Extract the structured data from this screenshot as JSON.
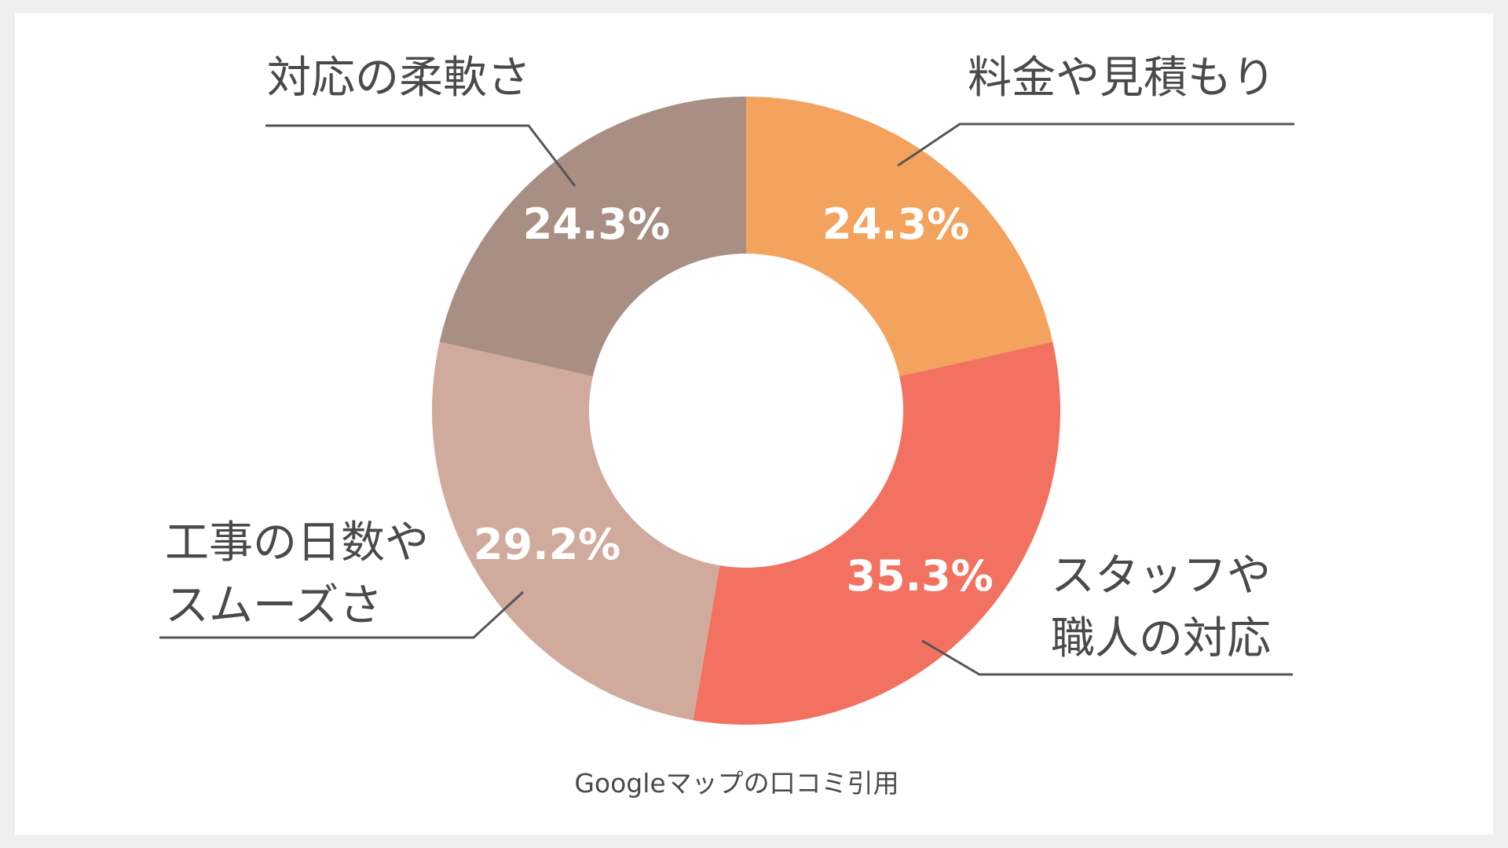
{
  "chart_data": {
    "type": "pie",
    "donut": true,
    "start": "12 o'clock, clockwise",
    "categories": [
      "料金や見積もり",
      "スタッフや職人の対応",
      "工事の日数やスムーズさ",
      "対応の柔軟さ"
    ],
    "label_lines": [
      [
        "料金や見積もり"
      ],
      [
        "スタッフや",
        "職人の対応"
      ],
      [
        "工事の日数や",
        "スムーズさ"
      ],
      [
        "対応の柔軟さ"
      ]
    ],
    "values": [
      24.3,
      35.3,
      29.2,
      24.3
    ],
    "value_labels": [
      "24.3%",
      "35.3%",
      "29.2%",
      "24.3%"
    ],
    "colors": [
      "#F3A35D",
      "#F27161",
      "#D0AA9C",
      "#A98E83"
    ],
    "legend": "none (callout labels)",
    "caption": "Googleマップの口コミ引用"
  }
}
